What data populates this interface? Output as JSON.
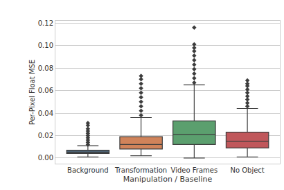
{
  "chart_data": {
    "type": "box",
    "x_label": "Manipulation / Baseline",
    "y_label": "Per-Pixel Float MSE",
    "categories": [
      "Background",
      "Transformation",
      "Video Frames",
      "No Object"
    ],
    "colors": [
      "#4c6172",
      "#d0835a",
      "#5b9f6e",
      "#c0575b"
    ],
    "q1": [
      0.004,
      0.008,
      0.012,
      0.009
    ],
    "median": [
      0.005,
      0.012,
      0.021,
      0.015
    ],
    "q3": [
      0.007,
      0.019,
      0.033,
      0.023
    ],
    "whisker_low": [
      0.001,
      0.002,
      0.0,
      0.001
    ],
    "whisker_high": [
      0.011,
      0.036,
      0.065,
      0.044
    ],
    "outliers": [
      [
        0.012,
        0.014,
        0.016,
        0.018,
        0.02,
        0.022,
        0.024,
        0.026,
        0.029,
        0.031
      ],
      [
        0.038,
        0.042,
        0.046,
        0.05,
        0.054,
        0.058,
        0.062,
        0.066,
        0.07,
        0.073
      ],
      [
        0.067,
        0.071,
        0.075,
        0.079,
        0.083,
        0.087,
        0.091,
        0.095,
        0.098,
        0.101,
        0.116
      ],
      [
        0.046,
        0.049,
        0.052,
        0.055,
        0.058,
        0.061,
        0.064,
        0.066,
        0.069
      ]
    ],
    "ylim": [
      -0.005,
      0.122
    ],
    "yticks": [
      {
        "value": 0,
        "label": "0.00"
      },
      {
        "value": 0.02,
        "label": "0.02"
      },
      {
        "value": 0.04,
        "label": "0.04"
      },
      {
        "value": 0.06,
        "label": "0.06"
      },
      {
        "value": 0.08,
        "label": "0.08"
      },
      {
        "value": 0.1,
        "label": "0.10"
      },
      {
        "value": 0.12,
        "label": "0.12"
      }
    ],
    "grid": true
  }
}
